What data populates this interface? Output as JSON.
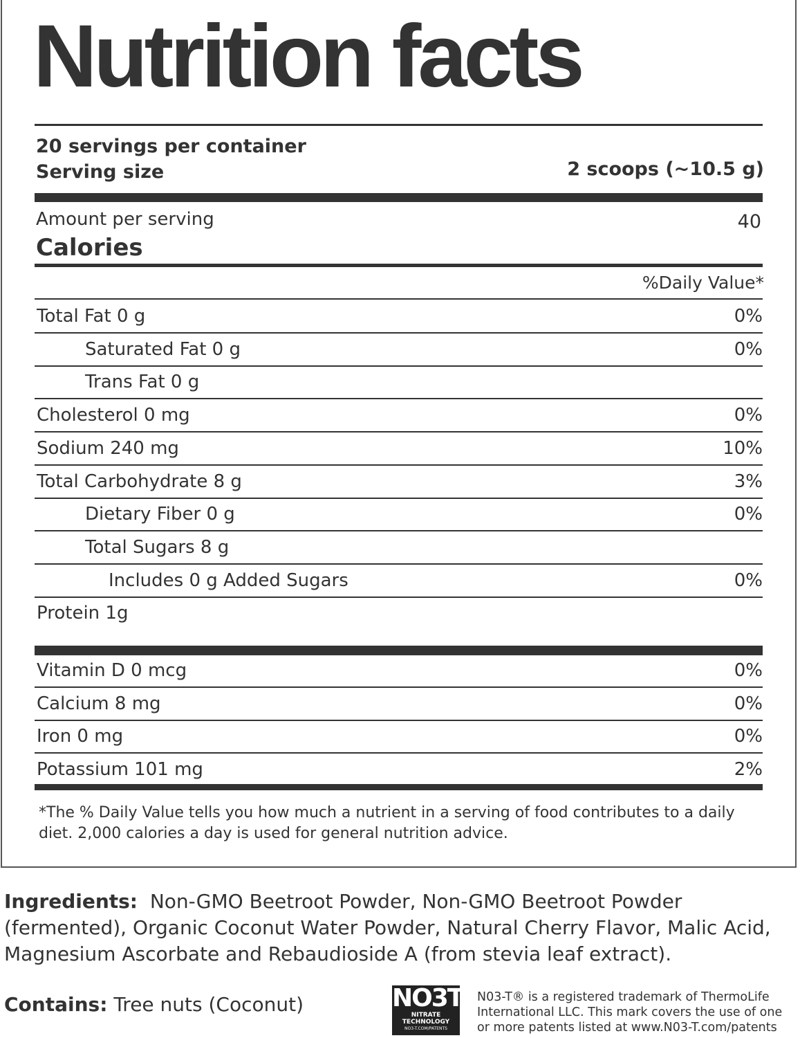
{
  "title": "Nutrition facts",
  "servings": "20 servings per container",
  "serving_size_label": "Serving size",
  "serving_size": "2 scoops (~10.5 g)",
  "amount_per_serving": "Amount per serving",
  "calories_label": "Calories",
  "calories": "40",
  "daily_value_header": "%Daily Value*",
  "nutrients": [
    {
      "label": "Total Fat 0 g",
      "dv": "0%",
      "sub": [
        {
          "label": "Saturated Fat 0 g",
          "dv": "0%"
        },
        {
          "label": "Trans Fat 0 g"
        }
      ]
    },
    {
      "label": "Cholesterol 0 mg",
      "dv": "0%"
    },
    {
      "label": "Sodium 240 mg",
      "dv": "10%"
    },
    {
      "label": "Total Carbohydrate 8 g",
      "dv": "3%",
      "sub": [
        {
          "label": "Dietary Fiber 0 g",
          "dv": "0%"
        },
        {
          "label": "Total  Sugars 8 g",
          "sub": [
            {
              "label": "Includes 0 g Added Sugars",
              "dv": "0%"
            }
          ]
        }
      ]
    },
    {
      "label": "Protein 1g"
    }
  ],
  "vitamins": [
    {
      "label": "Vitamin D 0 mcg",
      "dv": "0%"
    },
    {
      "label": "Calcium 8 mg",
      "dv": "0%"
    },
    {
      "label": "Iron 0 mg",
      "dv": "0%"
    },
    {
      "label": "Potassium 101 mg",
      "dv": "2%"
    }
  ],
  "footnote": "*The % Daily Value tells you how much a nutrient in a serving of food contributes to a daily diet. 2,000 calories a day is used for general nutrition advice.",
  "ingredients_label": "Ingredients:",
  "ingredients": "Non-GMO Beetroot Powder, Non-GMO Beetroot Powder (fermented), Organic Coconut Water Powder, Natural Cherry Flavor, Malic Acid, Magnesium Ascorbate and Rebaudioside A (from stevia leaf extract).",
  "contains_label": "Contains:",
  "contains": "Tree nuts (Coconut)",
  "logo": {
    "mark": "NO3T",
    "line1": "NITRATE TECHNOLOGY",
    "line2": "NO3-T.COM/PATENTS"
  },
  "trademark": "N03-T® is a registered trademark of ThermoLife International LLC. This mark covers the use of one or more patents listed at www.N03-T.com/patents"
}
